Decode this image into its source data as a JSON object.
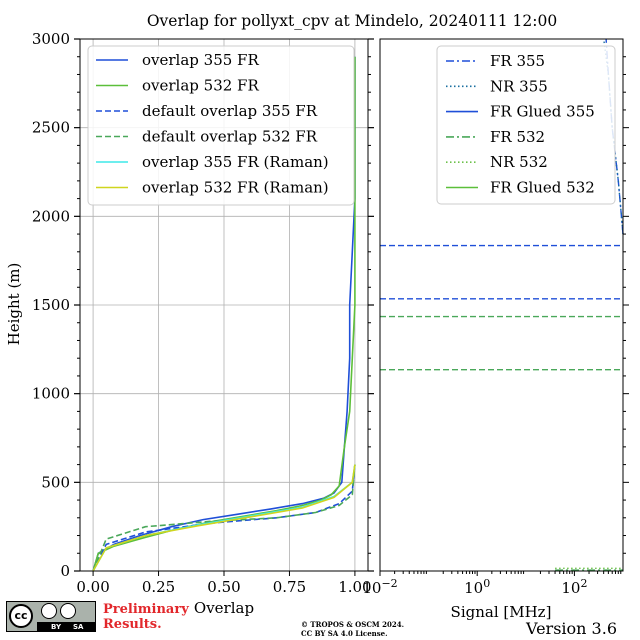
{
  "chart_data": [
    {
      "type": "line",
      "title": "Overlap for pollyxt_cpv at Mindelo, 20240111 12:00",
      "xlabel": "Overlap",
      "ylabel": "Height (m)",
      "xlim": [
        -0.05,
        1.05
      ],
      "ylim": [
        0,
        3000
      ],
      "xticks": [
        "0.00",
        "0.25",
        "0.50",
        "0.75",
        "1.00"
      ],
      "yticks": [
        "0",
        "500",
        "1000",
        "1500",
        "2000",
        "2500",
        "3000"
      ],
      "grid": true,
      "legend_position": "top",
      "series": [
        {
          "name": "overlap 355 FR",
          "color": "#1f4fd8",
          "style": "solid",
          "x": [
            0.0,
            0.02,
            0.08,
            0.18,
            0.3,
            0.42,
            0.55,
            0.68,
            0.8,
            0.88,
            0.92,
            0.95,
            0.96,
            0.97,
            0.98,
            0.98,
            0.99,
            1.0,
            1.0,
            1.0
          ],
          "y": [
            0,
            100,
            150,
            200,
            250,
            290,
            320,
            350,
            380,
            410,
            440,
            500,
            700,
            900,
            1200,
            1500,
            1800,
            2100,
            2500,
            2900
          ]
        },
        {
          "name": "overlap 532 FR",
          "color": "#5cbf3a",
          "style": "solid",
          "x": [
            0.0,
            0.02,
            0.08,
            0.2,
            0.33,
            0.46,
            0.58,
            0.7,
            0.8,
            0.87,
            0.91,
            0.94,
            0.96,
            0.98,
            0.99,
            1.0,
            1.0,
            1.0,
            1.0,
            1.0
          ],
          "y": [
            0,
            100,
            140,
            190,
            240,
            280,
            310,
            340,
            370,
            400,
            430,
            480,
            700,
            900,
            1200,
            1500,
            1800,
            2100,
            2500,
            2900
          ]
        },
        {
          "name": "default overlap 355 FR",
          "color": "#1f4fd8",
          "style": "dashed",
          "x": [
            0.0,
            0.05,
            0.2,
            0.45,
            0.7,
            0.85,
            0.94,
            0.99,
            1.0
          ],
          "y": [
            0,
            150,
            220,
            270,
            300,
            330,
            380,
            450,
            600
          ]
        },
        {
          "name": "default overlap 532 FR",
          "color": "#4aa85a",
          "style": "dashed",
          "x": [
            0.0,
            0.05,
            0.2,
            0.45,
            0.7,
            0.85,
            0.94,
            0.99,
            1.0
          ],
          "y": [
            0,
            180,
            250,
            280,
            300,
            330,
            370,
            430,
            600
          ]
        },
        {
          "name": "overlap 355 FR (Raman)",
          "color": "#3de8e8",
          "style": "solid",
          "x": [
            0.0,
            0.05,
            0.2,
            0.4,
            0.6,
            0.8,
            0.92,
            0.99,
            1.0
          ],
          "y": [
            0,
            130,
            200,
            260,
            310,
            360,
            420,
            500,
            600
          ]
        },
        {
          "name": "overlap 532 FR (Raman)",
          "color": "#cfd51e",
          "style": "solid",
          "x": [
            0.0,
            0.05,
            0.2,
            0.4,
            0.6,
            0.8,
            0.92,
            0.99,
            1.0
          ],
          "y": [
            0,
            130,
            200,
            255,
            305,
            355,
            415,
            500,
            600
          ]
        }
      ]
    },
    {
      "type": "line",
      "xlabel": "Signal [MHz]",
      "xscale": "log",
      "xlim": [
        0.01,
        1000
      ],
      "ylim": [
        0,
        3000
      ],
      "xticks": [
        {
          "base": "10",
          "exp": "−2"
        },
        {
          "base": "10",
          "exp": "0"
        },
        {
          "base": "10",
          "exp": "2"
        }
      ],
      "legend_position": "top-right",
      "series": [
        {
          "name": "FR 355",
          "color": "#1f4fd8",
          "style": "dashdot",
          "x": [
            1000,
            800,
            600,
            500,
            450
          ],
          "y": [
            1900,
            2200,
            2500,
            2800,
            3000
          ]
        },
        {
          "name": "NR 355",
          "color": "#1a6fa0",
          "style": "dotted",
          "x": [
            1000,
            800,
            600,
            500,
            400
          ],
          "y": [
            1900,
            2200,
            2500,
            2800,
            3000
          ]
        },
        {
          "name": "FR Glued 355",
          "color": "#1f4fd8",
          "style": "solid",
          "x": [],
          "y": []
        },
        {
          "name": "FR 532",
          "color": "#4aa85a",
          "style": "dashdot",
          "x": [
            40,
            200,
            1000
          ],
          "y": [
            5,
            5,
            5
          ]
        },
        {
          "name": "NR 532",
          "color": "#6cc04a",
          "style": "dotted",
          "x": [
            40,
            200,
            1000
          ],
          "y": [
            15,
            15,
            15
          ]
        },
        {
          "name": "FR Glued 532",
          "color": "#5cbf3a",
          "style": "solid",
          "x": [],
          "y": []
        }
      ],
      "hlines": [
        {
          "y": 1835,
          "color": "#1f4fd8"
        },
        {
          "y": 1535,
          "color": "#1f4fd8"
        },
        {
          "y": 1435,
          "color": "#4aa85a"
        },
        {
          "y": 1135,
          "color": "#4aa85a"
        }
      ]
    }
  ],
  "footer": {
    "license_cc": "cc",
    "license_by": "BY",
    "license_sa": "SA",
    "preliminary_line1": "Preliminary",
    "preliminary_line2": "Results.",
    "copyright_line1": "© TROPOS & OSCM 2024.",
    "copyright_line2": "CC BY SA 4.0 License.",
    "version": "Version 3.6"
  }
}
